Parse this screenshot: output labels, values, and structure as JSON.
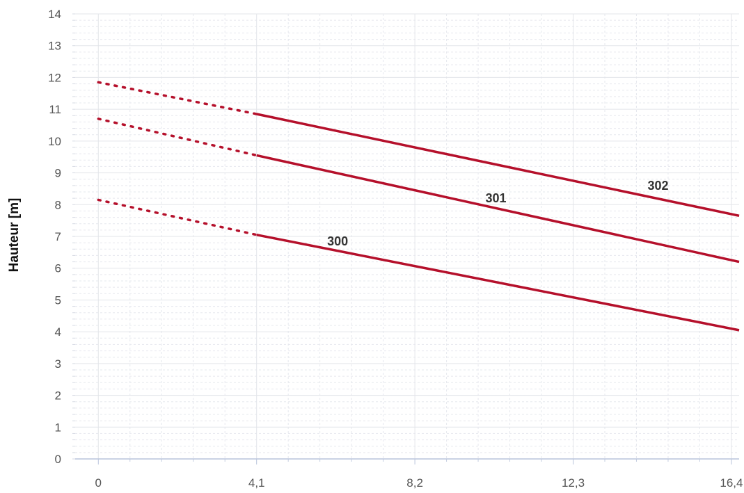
{
  "chart_data": {
    "type": "line",
    "title": "",
    "xlabel": "",
    "ylabel": "Hauteur [m]",
    "xlim": [
      -0.6,
      16.6
    ],
    "ylim": [
      0,
      14
    ],
    "x_ticks": [
      0,
      4.1,
      8.2,
      12.3,
      16.4
    ],
    "x_tick_labels": [
      "0",
      "4,1",
      "8,2",
      "12,3",
      "16,4"
    ],
    "y_ticks": [
      0,
      1,
      2,
      3,
      4,
      5,
      6,
      7,
      8,
      9,
      10,
      11,
      12,
      13,
      14
    ],
    "y_tick_labels": [
      "0",
      "1",
      "2",
      "3",
      "4",
      "5",
      "6",
      "7",
      "8",
      "9",
      "10",
      "11",
      "12",
      "13",
      "14"
    ],
    "grid": true,
    "legend": "none",
    "series": [
      {
        "name": "300",
        "color": "#b5102b",
        "dotted": {
          "x": [
            0,
            4.1
          ],
          "y": [
            8.15,
            7.05
          ]
        },
        "solid": {
          "x": [
            4.1,
            16.6
          ],
          "y": [
            7.05,
            4.05
          ]
        }
      },
      {
        "name": "301",
        "color": "#b5102b",
        "dotted": {
          "x": [
            0,
            4.1
          ],
          "y": [
            10.7,
            9.55
          ]
        },
        "solid": {
          "x": [
            4.1,
            16.6
          ],
          "y": [
            9.55,
            6.2
          ]
        }
      },
      {
        "name": "302",
        "color": "#b5102b",
        "dotted": {
          "x": [
            0,
            4.1
          ],
          "y": [
            11.85,
            10.85
          ]
        },
        "solid": {
          "x": [
            4.1,
            16.6
          ],
          "y": [
            10.85,
            7.65
          ]
        }
      }
    ],
    "annotations": [
      {
        "text": "300",
        "x": 6.2,
        "y": 6.85
      },
      {
        "text": "301",
        "x": 10.3,
        "y": 8.2
      },
      {
        "text": "302",
        "x": 14.5,
        "y": 8.6
      }
    ]
  }
}
